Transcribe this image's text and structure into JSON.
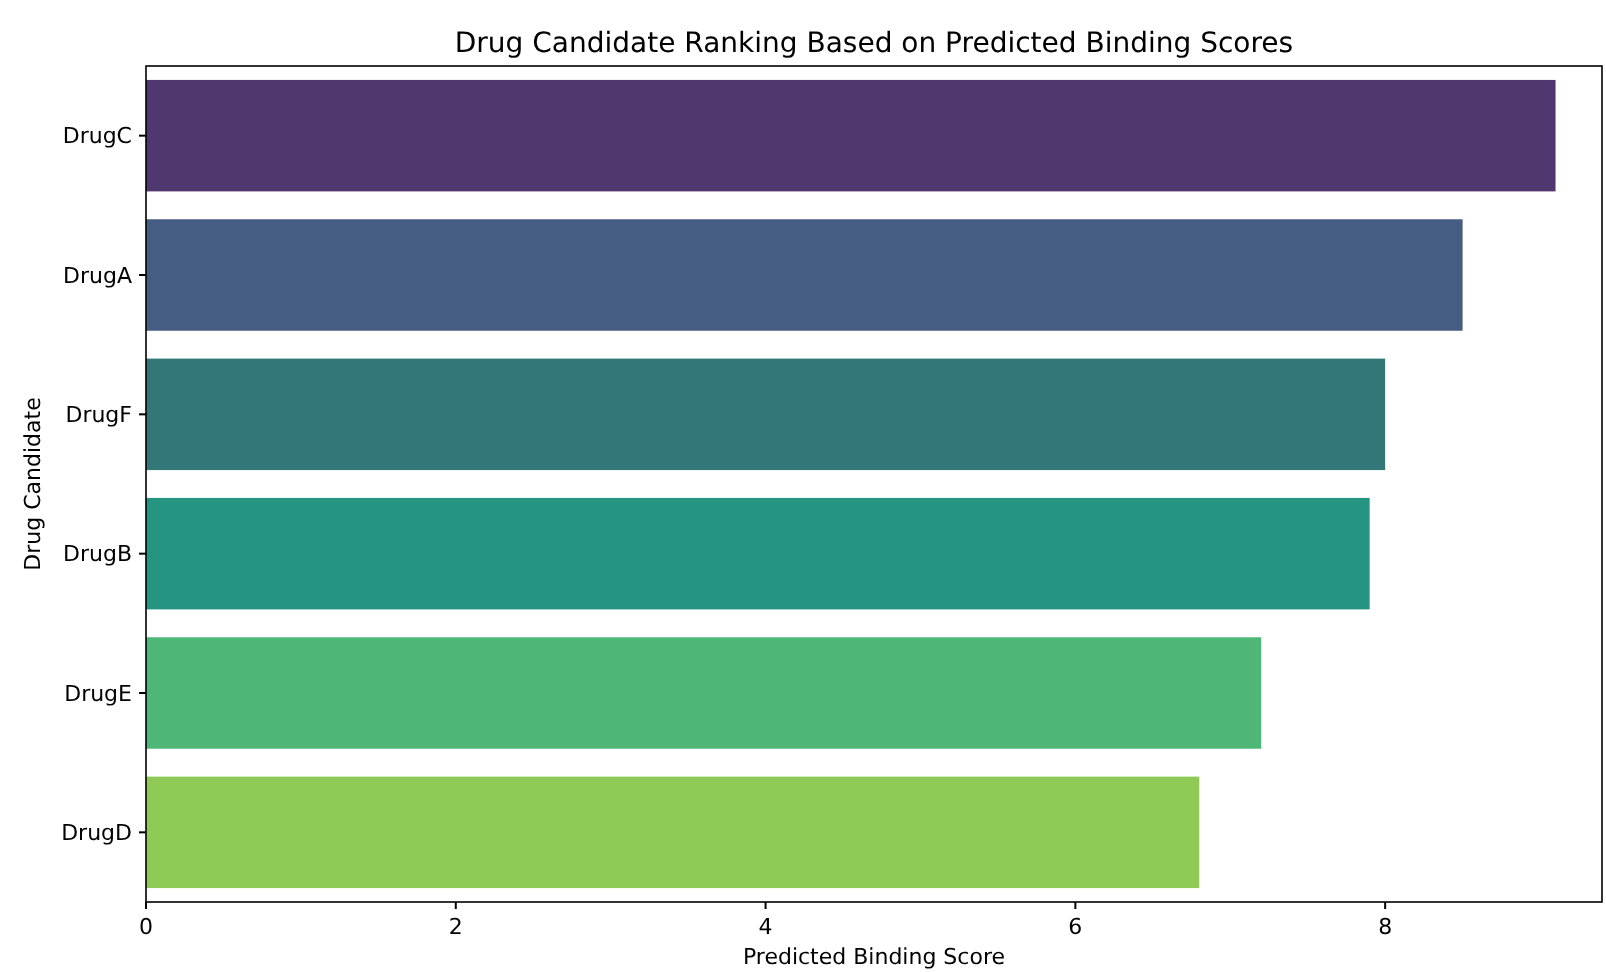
{
  "chart_data": {
    "type": "bar",
    "orientation": "horizontal",
    "title": "Drug Candidate Ranking Based on Predicted Binding Scores",
    "xlabel": "Predicted Binding Score",
    "ylabel": "Drug Candidate",
    "categories": [
      "DrugC",
      "DrugA",
      "DrugF",
      "DrugB",
      "DrugE",
      "DrugD"
    ],
    "values": [
      9.1,
      8.5,
      8.0,
      7.9,
      7.2,
      6.8
    ],
    "colors": [
      "#51376f",
      "#465d83",
      "#347779",
      "#259582",
      "#4eb677",
      "#8fca57"
    ],
    "xlim": [
      0,
      9.4
    ],
    "xticks": [
      0,
      2,
      4,
      6,
      8
    ],
    "grid": false
  }
}
